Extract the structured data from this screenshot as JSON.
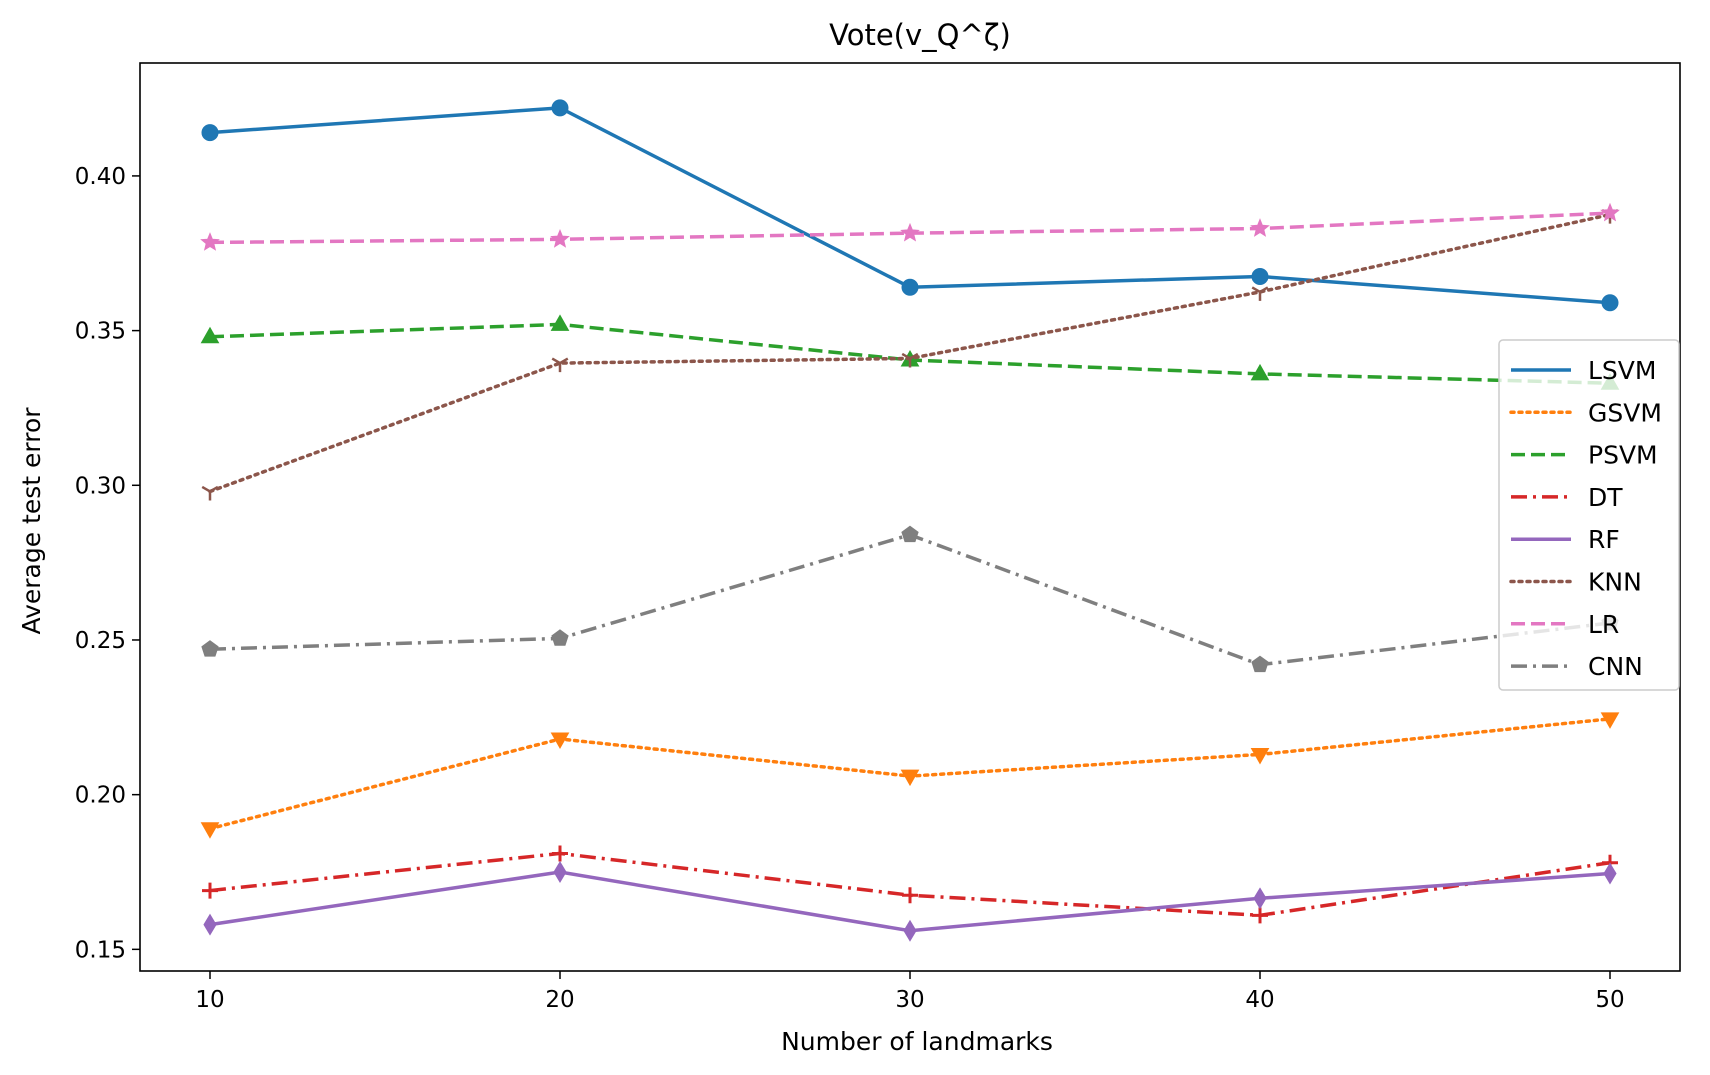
{
  "chart_data": {
    "type": "line",
    "title": "Vote(v_Q^ζ)",
    "xlabel": "Number of landmarks",
    "ylabel": "Average test error",
    "x": [
      10,
      20,
      30,
      40,
      50
    ],
    "xlim": [
      8,
      52
    ],
    "ylim": [
      0.143,
      0.4365
    ],
    "xticks": [
      "10",
      "20",
      "30",
      "40",
      "50"
    ],
    "yticks": [
      "0.15",
      "0.20",
      "0.25",
      "0.30",
      "0.35",
      "0.40"
    ],
    "grid": false,
    "legend_position": "center-right",
    "series": [
      {
        "name": "LSVM",
        "values": [
          0.414,
          0.422,
          0.364,
          0.3675,
          0.359
        ],
        "color": "#1f77b4",
        "line_style": "solid",
        "marker": "circle"
      },
      {
        "name": "GSVM",
        "values": [
          0.189,
          0.218,
          0.206,
          0.213,
          0.2245
        ],
        "color": "#ff7f0e",
        "line_style": "dotted",
        "marker": "triangle-down"
      },
      {
        "name": "PSVM",
        "values": [
          0.348,
          0.352,
          0.3405,
          0.336,
          0.333
        ],
        "color": "#2ca02c",
        "line_style": "dashed",
        "marker": "triangle-up"
      },
      {
        "name": "DT",
        "values": [
          0.169,
          0.181,
          0.1675,
          0.161,
          0.178
        ],
        "color": "#d62728",
        "line_style": "dashdot",
        "marker": "plus"
      },
      {
        "name": "RF",
        "values": [
          0.158,
          0.175,
          0.156,
          0.1665,
          0.1745
        ],
        "color": "#9467bd",
        "line_style": "solid",
        "marker": "thin-diamond"
      },
      {
        "name": "KNN",
        "values": [
          0.298,
          0.3395,
          0.341,
          0.3625,
          0.3875
        ],
        "color": "#8c564b",
        "line_style": "dotted",
        "marker": "tri-down"
      },
      {
        "name": "LR",
        "values": [
          0.3785,
          0.3795,
          0.3815,
          0.383,
          0.388
        ],
        "color": "#e377c2",
        "line_style": "dashed",
        "marker": "star"
      },
      {
        "name": "CNN",
        "values": [
          0.247,
          0.2505,
          0.284,
          0.242,
          0.2555
        ],
        "color": "#7f7f7f",
        "line_style": "dashdot",
        "marker": "pentagon"
      }
    ]
  }
}
